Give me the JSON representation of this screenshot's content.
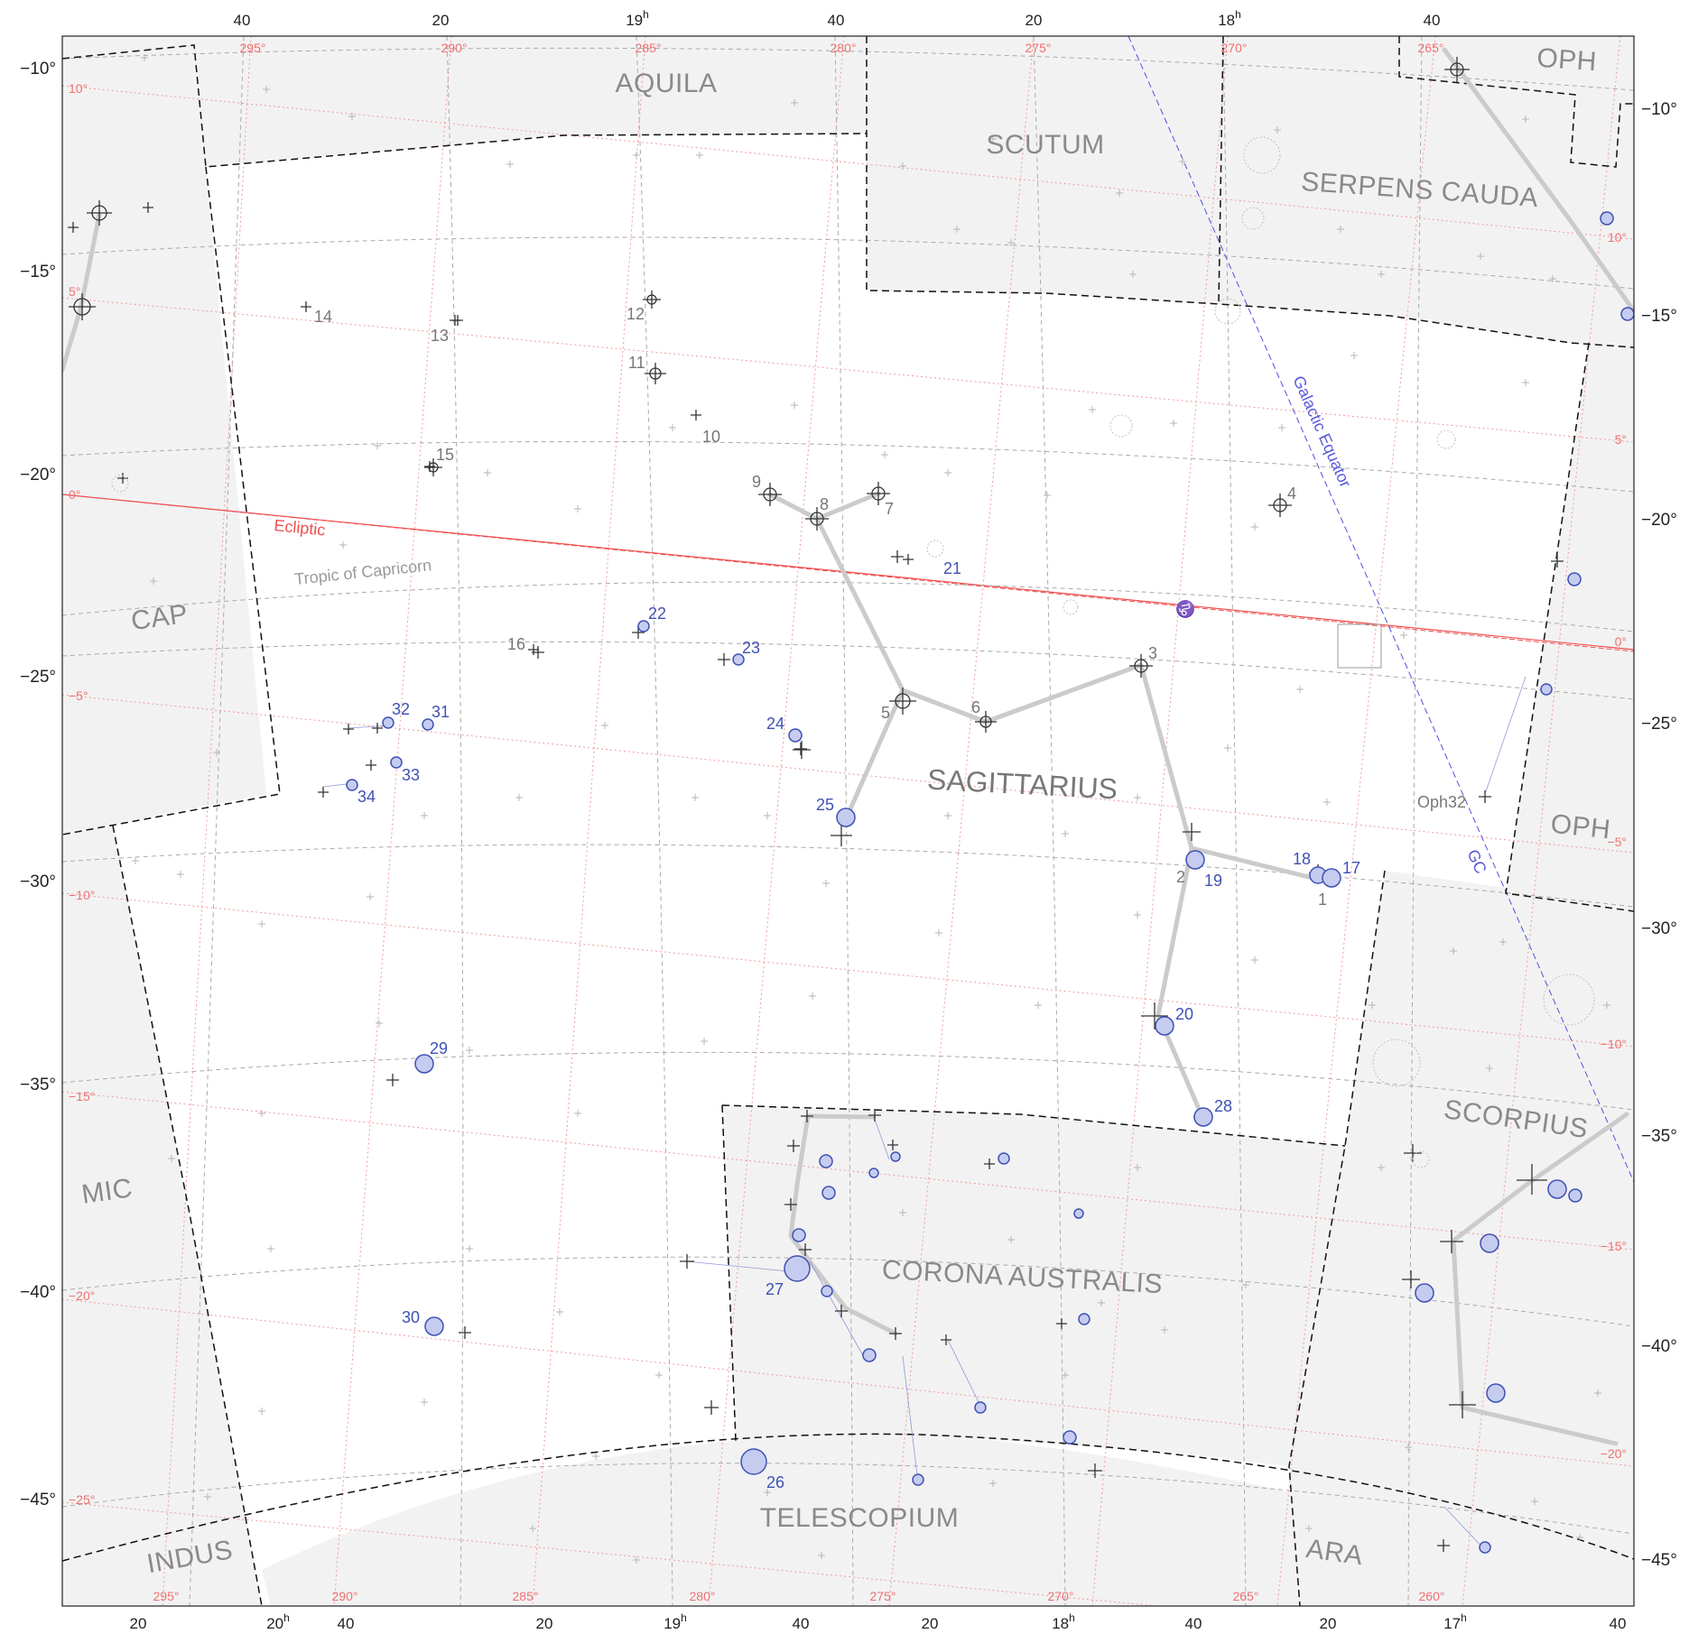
{
  "constellations": [
    {
      "name": "AQUILA"
    },
    {
      "name": "SCUTUM"
    },
    {
      "name": "SERPENS CAUDA"
    },
    {
      "name": "OPH"
    },
    {
      "name": "CAP"
    },
    {
      "name": "SAGITTARIUS"
    },
    {
      "name": "OPH"
    },
    {
      "name": "MIC"
    },
    {
      "name": "SCORPIUS"
    },
    {
      "name": "CORONA AUSTRALIS"
    },
    {
      "name": "TELESCOPIUM"
    },
    {
      "name": "INDUS"
    },
    {
      "name": "ARA"
    }
  ],
  "top_ra_labels": [
    "40",
    "20",
    "19",
    "40",
    "20",
    "18",
    "40"
  ],
  "top_ra_hour_sup": "h",
  "bottom_ra_labels": [
    "20",
    "20",
    "40",
    "20",
    "19",
    "40",
    "20",
    "18",
    "40",
    "20",
    "17",
    "40"
  ],
  "left_dec_labels": [
    "−10°",
    "−15°",
    "−20°",
    "−25°",
    "−30°",
    "−35°",
    "−40°",
    "−45°"
  ],
  "right_dec_labels": [
    "−10°",
    "−15°",
    "−20°",
    "−25°",
    "−30°",
    "−35°",
    "−40°",
    "−45°"
  ],
  "galactic_top": [
    "295°",
    "290°",
    "285°",
    "280°",
    "275°",
    "270°",
    "265°"
  ],
  "galactic_bottom": [
    "295°",
    "290°",
    "285°",
    "280°",
    "275°",
    "270°",
    "265°",
    "260°"
  ],
  "galactic_left": [
    "10°",
    "5°",
    "0°",
    "−5°",
    "−10°",
    "−15°",
    "−20°",
    "−25°"
  ],
  "galactic_right": [
    "10°",
    "5°",
    "0°",
    "−5°",
    "−10°",
    "−15°",
    "−20°"
  ],
  "annotations": {
    "ecliptic": "Ecliptic",
    "tropic": "Tropic of Capricorn",
    "galactic_equator": "Galactic Equator",
    "gc": "GC",
    "oph32": "Oph32",
    "solstice": "♑"
  },
  "star_labels_gray": [
    "1",
    "2",
    "3",
    "4",
    "5",
    "6",
    "7",
    "8",
    "9",
    "10",
    "11",
    "12",
    "13",
    "14",
    "15",
    "16"
  ],
  "star_labels_blue": [
    "17",
    "18",
    "19",
    "20",
    "21",
    "22",
    "23",
    "24",
    "25",
    "26",
    "27",
    "28",
    "29",
    "30",
    "31",
    "32",
    "33",
    "34"
  ],
  "colors": {
    "background": "#ffffff",
    "outside_constellation": "#f2f2f2",
    "boundary": "#111111",
    "ra_dec_grid": "#aaaaaa",
    "galactic_grid": "#f28080",
    "ecliptic": "#f05050",
    "galactic_equator": "#5050e0",
    "stick_figure": "#c8c8c8",
    "blue_star_fill": "#c5ccef",
    "blue_star_stroke": "#3f51b5"
  }
}
